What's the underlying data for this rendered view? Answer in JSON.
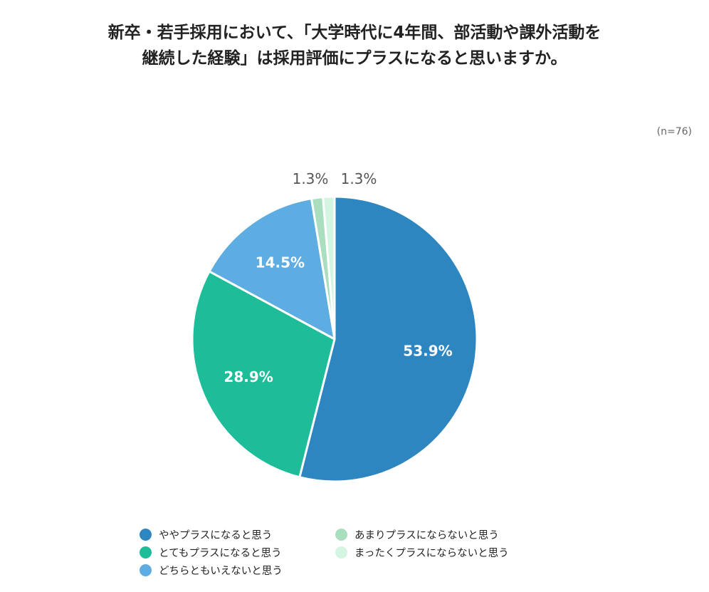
{
  "title": {
    "line1": "新卒・若手採用において、「大学時代に4年間、部活動や課外活動を",
    "line2": "継続した経験」は採用評価にプラスになると思いますか。"
  },
  "sample_note": "(n=76)",
  "chart_data": {
    "type": "pie",
    "title": "新卒・若手採用において、「大学時代に4年間、部活動や課外活動を継続した経験」は採用評価にプラスになると思いますか。",
    "unit": "%",
    "start": "12 o'clock",
    "direction": "clockwise",
    "slices": [
      {
        "label": "ややプラスになると思う",
        "value": 53.9,
        "display": "53.9%",
        "color": "#2E86C1",
        "label_position": "inside",
        "label_color": "#ffffff"
      },
      {
        "label": "とてもプラスになると思う",
        "value": 28.9,
        "display": "28.9%",
        "color": "#1DBD9A",
        "label_position": "inside",
        "label_color": "#ffffff"
      },
      {
        "label": "どちらともいえないと思う",
        "value": 14.5,
        "display": "14.5%",
        "color": "#5DADE2",
        "label_position": "inside",
        "label_color": "#ffffff"
      },
      {
        "label": "あまりプラスにならないと思う",
        "value": 1.3,
        "display": "1.3%",
        "color": "#A9DFBF",
        "label_position": "outside",
        "label_color": "#555555"
      },
      {
        "label": "まったくプラスにならないと思う",
        "value": 1.3,
        "display": "1.3%",
        "color": "#D5F5E3",
        "label_position": "outside",
        "label_color": "#555555"
      }
    ],
    "legend": {
      "placement": "bottom",
      "order": [
        0,
        1,
        2,
        3,
        4
      ],
      "items": [
        "ややプラスになると思う",
        "とてもプラスになると思う",
        "どちらともいえないと思う",
        "あまりプラスにならないと思う",
        "まったくプラスにならないと思う"
      ]
    }
  }
}
